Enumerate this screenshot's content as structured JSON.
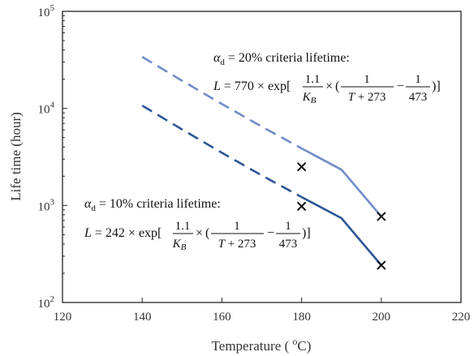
{
  "chart_data": {
    "type": "line",
    "title": "",
    "xlabel": "Temperature ( oC)",
    "xlabel_parts": {
      "prefix": "Temperature ( ",
      "sup": "o",
      "suffix": "C)"
    },
    "ylabel": "Life time (hour)",
    "xlim": [
      120,
      220
    ],
    "ylim": [
      100,
      100000
    ],
    "yscale": "log",
    "xticks": [
      120,
      140,
      160,
      180,
      200,
      220
    ],
    "xtick_labels": [
      "120",
      "140",
      "160",
      "180",
      "200",
      "220"
    ],
    "yticks": [
      100,
      1000,
      10000,
      100000
    ],
    "ytick_labels": [
      {
        "base": "10",
        "exp": "2"
      },
      {
        "base": "10",
        "exp": "3"
      },
      {
        "base": "10",
        "exp": "4"
      },
      {
        "base": "10",
        "exp": "5"
      }
    ],
    "grid": false,
    "legend": "none",
    "series": [
      {
        "color": "#6f8cc8",
        "x": [
          140,
          150,
          160,
          170,
          180,
          190,
          200
        ],
        "y": [
          34000,
          19300,
          11100,
          6500,
          3870,
          2340,
          770
        ],
        "extrapolated_range": [
          140,
          180
        ],
        "fitted_range": [
          180,
          200
        ],
        "markers": [
          {
            "x": 180,
            "y": 2500
          },
          {
            "x": 200,
            "y": 770
          }
        ]
      },
      {
        "color": "#2b5595",
        "x": [
          140,
          150,
          160,
          170,
          180,
          190,
          200
        ],
        "y": [
          10700,
          6070,
          3490,
          2040,
          1220,
          740,
          242
        ],
        "extrapolated_range": [
          140,
          180
        ],
        "fitted_range": [
          180,
          200
        ],
        "markers": [
          {
            "x": 180,
            "y": 980
          },
          {
            "x": 200,
            "y": 242
          }
        ]
      }
    ],
    "annotations": [
      {
        "alpha": "α",
        "alpha_sub": "d",
        "criteria": " = 20% criteria lifetime:",
        "L": "L",
        "coef": " = 770 × exp[",
        "num1": "1.1",
        "den1": "K",
        "den1_sub": "B",
        "times": "×",
        "open": "(",
        "num2": "1",
        "den2": "T + 273",
        "minus": "−",
        "num3": "1",
        "den3": "473",
        "close": ")]"
      },
      {
        "alpha": "α",
        "alpha_sub": "d",
        "criteria": " = 10% criteria lifetime:",
        "L": "L",
        "coef": " = 242 × exp[",
        "num1": "1.1",
        "den1": "K",
        "den1_sub": "B",
        "times": "×",
        "open": "(",
        "num2": "1",
        "den2": "T + 273",
        "minus": "−",
        "num3": "1",
        "den3": "473",
        "close": ")]"
      }
    ]
  }
}
